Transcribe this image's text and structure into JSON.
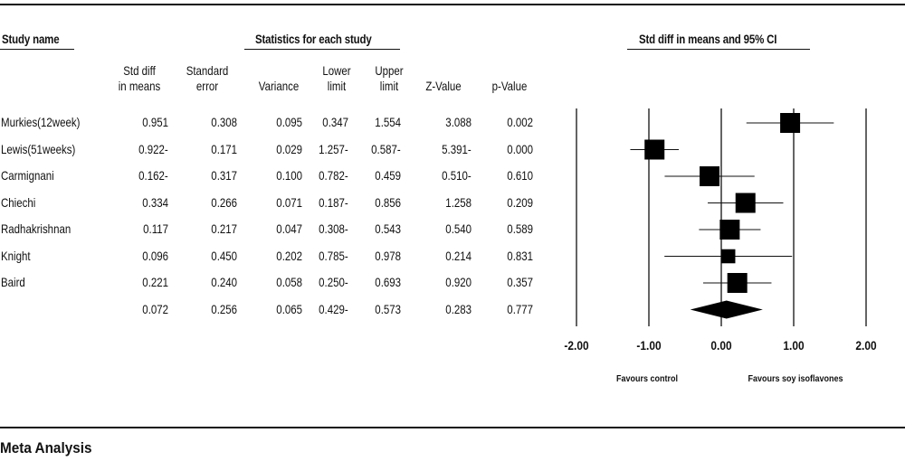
{
  "headers": {
    "study_name": "Study name",
    "statistics": "Statistics for each study",
    "plot_title": "Std diff in means and 95%  CI"
  },
  "columns": [
    {
      "key": "std_diff",
      "label": "Std diff\nin means"
    },
    {
      "key": "se",
      "label": "Standard\nerror"
    },
    {
      "key": "variance",
      "label": "Variance"
    },
    {
      "key": "lower",
      "label": "Lower\nlimit"
    },
    {
      "key": "upper",
      "label": "Upper\nlimit"
    },
    {
      "key": "z",
      "label": "Z-Value"
    },
    {
      "key": "p",
      "label": "p-Value"
    }
  ],
  "rows": [
    {
      "name": "Murkies(12week)",
      "std_diff": "0.951",
      "se": "0.308",
      "variance": "0.095",
      "lower": "0.347",
      "upper": "1.554",
      "z": "3.088",
      "p": "0.002"
    },
    {
      "name": "Lewis(51weeks)",
      "std_diff": "0.922-",
      "se": "0.171",
      "variance": "0.029",
      "lower": "1.257-",
      "upper": "0.587-",
      "z": "5.391-",
      "p": "0.000"
    },
    {
      "name": "Carmignani",
      "std_diff": "0.162-",
      "se": "0.317",
      "variance": "0.100",
      "lower": "0.782-",
      "upper": "0.459",
      "z": "0.510-",
      "p": "0.610"
    },
    {
      "name": "Chiechi",
      "std_diff": "0.334",
      "se": "0.266",
      "variance": "0.071",
      "lower": "0.187-",
      "upper": "0.856",
      "z": "1.258",
      "p": "0.209"
    },
    {
      "name": "Radhakrishnan",
      "std_diff": "0.117",
      "se": "0.217",
      "variance": "0.047",
      "lower": "0.308-",
      "upper": "0.543",
      "z": "0.540",
      "p": "0.589"
    },
    {
      "name": "Knight",
      "std_diff": "0.096",
      "se": "0.450",
      "variance": "0.202",
      "lower": "0.785-",
      "upper": "0.978",
      "z": "0.214",
      "p": "0.831"
    },
    {
      "name": "Baird",
      "std_diff": "0.221",
      "se": "0.240",
      "variance": "0.058",
      "lower": "0.250-",
      "upper": "0.693",
      "z": "0.920",
      "p": "0.357"
    },
    {
      "name": "",
      "std_diff": "0.072",
      "se": "0.256",
      "variance": "0.065",
      "lower": "0.429-",
      "upper": "0.573",
      "z": "0.283",
      "p": "0.777"
    }
  ],
  "chart_data": {
    "type": "forest",
    "title": "Std diff in means and 95%  CI",
    "xlim": [
      -2,
      2
    ],
    "ticks": [
      -2,
      -1,
      0,
      1,
      2
    ],
    "tick_labels": [
      "-2.00",
      "-1.00",
      "0.00",
      "1.00",
      "2.00"
    ],
    "studies": [
      {
        "name": "Murkies(12week)",
        "estimate": 0.951,
        "lower": 0.347,
        "upper": 1.554
      },
      {
        "name": "Lewis(51weeks)",
        "estimate": -0.922,
        "lower": -1.257,
        "upper": -0.587
      },
      {
        "name": "Carmignani",
        "estimate": -0.162,
        "lower": -0.782,
        "upper": 0.459
      },
      {
        "name": "Chiechi",
        "estimate": 0.334,
        "lower": -0.187,
        "upper": 0.856
      },
      {
        "name": "Radhakrishnan",
        "estimate": 0.117,
        "lower": -0.308,
        "upper": 0.543
      },
      {
        "name": "Knight",
        "estimate": 0.096,
        "lower": -0.785,
        "upper": 0.978
      },
      {
        "name": "Baird",
        "estimate": 0.221,
        "lower": -0.25,
        "upper": 0.693
      }
    ],
    "summary": {
      "estimate": 0.072,
      "lower": -0.429,
      "upper": 0.573
    },
    "favours_left": "Favours control",
    "favours_right": "Favours soy isoflavones"
  },
  "footer": "Meta Analysis"
}
